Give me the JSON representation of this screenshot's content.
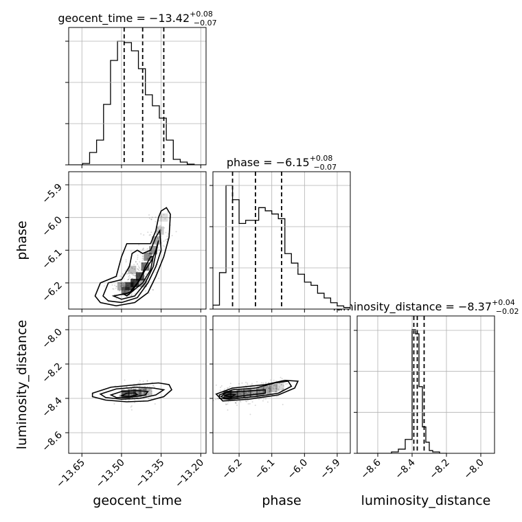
{
  "chart_data": {
    "type": "corner",
    "parameters": [
      "geocent_time",
      "phase",
      "luminosity_distance"
    ],
    "titles": [
      {
        "name": "geocent_time",
        "sep": " = ",
        "median": "−13.42",
        "plus": "+0.08",
        "minus": "−0.07"
      },
      {
        "name": "phase",
        "sep": " = ",
        "median": "−6.15",
        "plus": "+0.08",
        "minus": "−0.07"
      },
      {
        "name": "luminosity_distance",
        "sep": " = ",
        "median": "−8.37",
        "plus": "+0.04",
        "minus": "−0.02"
      }
    ],
    "axis_labels": {
      "x": [
        "geocent_time",
        "phase",
        "luminosity_distance"
      ],
      "y": [
        "phase",
        "luminosity_distance"
      ]
    },
    "ranges": {
      "geocent_time": [
        -13.7,
        -13.18
      ],
      "phase": [
        -6.28,
        -5.86
      ],
      "luminosity_distance": [
        -8.72,
        -7.92
      ]
    },
    "ticks": {
      "geocent_time": [
        "−13.65",
        "−13.50",
        "−13.35",
        "−13.20"
      ],
      "geocent_time_values": [
        -13.65,
        -13.5,
        -13.35,
        -13.2
      ],
      "phase": [
        "−6.2",
        "−6.1",
        "−6.0",
        "−5.9"
      ],
      "phase_values": [
        -6.2,
        -6.1,
        -6.0,
        -5.9
      ],
      "luminosity_distance_y": [
        "−8.0",
        "−8.2",
        "−8.4",
        "−8.6"
      ],
      "luminosity_distance_y_values": [
        -8.0,
        -8.2,
        -8.4,
        -8.6
      ],
      "luminosity_distance_x": [
        "−8.6",
        "−8.4",
        "−8.2",
        "−8.0"
      ],
      "luminosity_distance_x_values": [
        -8.6,
        -8.4,
        -8.2,
        -8.0
      ]
    },
    "quantiles": {
      "geocent_time": [
        -13.49,
        -13.42,
        -13.34
      ],
      "phase": [
        -6.22,
        -6.15,
        -6.07
      ],
      "luminosity_distance": [
        -8.39,
        -8.37,
        -8.33
      ]
    },
    "histograms": {
      "geocent_time": {
        "edges": [
          -13.7,
          -13.6736,
          -13.6472,
          -13.6208,
          -13.5944,
          -13.568,
          -13.5416,
          -13.5152,
          -13.4888,
          -13.4624,
          -13.436,
          -13.4096,
          -13.3832,
          -13.3568,
          -13.3304,
          -13.304,
          -13.2776,
          -13.2512,
          -13.2248,
          -13.1984,
          -13.172
        ],
        "counts": [
          0,
          0,
          2,
          18,
          36,
          88,
          152,
          180,
          178,
          166,
          140,
          102,
          86,
          68,
          36,
          8,
          4,
          1,
          0,
          0
        ]
      },
      "phase": {
        "edges": [
          -6.28,
          -6.26,
          -6.24,
          -6.22,
          -6.2,
          -6.18,
          -6.16,
          -6.14,
          -6.12,
          -6.1,
          -6.08,
          -6.06,
          -6.04,
          -6.02,
          -6.0,
          -5.98,
          -5.96,
          -5.94,
          -5.92,
          -5.9,
          -5.88,
          -5.86
        ],
        "counts": [
          5,
          46,
          156,
          138,
          108,
          112,
          112,
          128,
          124,
          120,
          114,
          70,
          58,
          44,
          34,
          30,
          20,
          14,
          8,
          4,
          2
        ]
      },
      "luminosity_distance": {
        "edges": [
          -8.72,
          -8.68,
          -8.64,
          -8.6,
          -8.56,
          -8.52,
          -8.48,
          -8.44,
          -8.4,
          -8.38,
          -8.36,
          -8.34,
          -8.32,
          -8.3,
          -8.28,
          -8.24,
          -8.2
        ],
        "counts": [
          0,
          0,
          0,
          0,
          0,
          2,
          6,
          20,
          178,
          172,
          96,
          38,
          16,
          4,
          2,
          0
        ]
      }
    },
    "hist2d": {
      "phase_vs_geocent_time": {
        "density": [
          {
            "x": -13.485,
            "y": -6.225,
            "w": 0.5
          },
          {
            "x": -13.47,
            "y": -6.21,
            "w": 0.7
          },
          {
            "x": -13.45,
            "y": -6.2,
            "w": 0.75
          },
          {
            "x": -13.43,
            "y": -6.18,
            "w": 0.7
          },
          {
            "x": -13.41,
            "y": -6.15,
            "w": 0.55
          },
          {
            "x": -13.4,
            "y": -6.12,
            "w": 0.45
          },
          {
            "x": -13.38,
            "y": -6.1,
            "w": 0.4
          },
          {
            "x": -13.37,
            "y": -6.07,
            "w": 0.3
          },
          {
            "x": -13.355,
            "y": -6.04,
            "w": 0.2
          },
          {
            "x": -13.34,
            "y": -6.0,
            "w": 0.12
          },
          {
            "x": -13.5,
            "y": -6.21,
            "w": 0.35
          },
          {
            "x": -13.46,
            "y": -6.16,
            "w": 0.25
          },
          {
            "x": -13.42,
            "y": -6.2,
            "w": 0.3
          }
        ],
        "contours": [
          [
            [
              -13.49,
              -6.235
            ],
            [
              -13.46,
              -6.225
            ],
            [
              -13.43,
              -6.19
            ],
            [
              -13.41,
              -6.15
            ],
            [
              -13.39,
              -6.12
            ],
            [
              -13.38,
              -6.12
            ],
            [
              -13.39,
              -6.16
            ],
            [
              -13.42,
              -6.2
            ],
            [
              -13.45,
              -6.22
            ],
            [
              -13.48,
              -6.24
            ]
          ],
          [
            [
              -13.53,
              -6.24
            ],
            [
              -13.47,
              -6.23
            ],
            [
              -13.44,
              -6.2
            ],
            [
              -13.41,
              -6.16
            ],
            [
              -13.385,
              -6.13
            ],
            [
              -13.37,
              -6.1
            ],
            [
              -13.36,
              -6.07
            ],
            [
              -13.365,
              -6.09
            ],
            [
              -13.38,
              -6.15
            ],
            [
              -13.41,
              -6.2
            ],
            [
              -13.45,
              -6.24
            ],
            [
              -13.5,
              -6.25
            ]
          ],
          [
            [
              -13.57,
              -6.24
            ],
            [
              -13.55,
              -6.2
            ],
            [
              -13.5,
              -6.19
            ],
            [
              -13.47,
              -6.15
            ],
            [
              -13.46,
              -6.11
            ],
            [
              -13.44,
              -6.1
            ],
            [
              -13.42,
              -6.11
            ],
            [
              -13.39,
              -6.1
            ],
            [
              -13.37,
              -6.06
            ],
            [
              -13.355,
              -6.04
            ],
            [
              -13.35,
              -6.1
            ],
            [
              -13.37,
              -6.15
            ],
            [
              -13.4,
              -6.2
            ],
            [
              -13.44,
              -6.245
            ],
            [
              -13.5,
              -6.26
            ],
            [
              -13.55,
              -6.255
            ]
          ],
          [
            [
              -13.6,
              -6.24
            ],
            [
              -13.58,
              -6.2
            ],
            [
              -13.52,
              -6.18
            ],
            [
              -13.5,
              -6.12
            ],
            [
              -13.48,
              -6.08
            ],
            [
              -13.44,
              -6.08
            ],
            [
              -13.42,
              -6.08
            ],
            [
              -13.39,
              -6.08
            ],
            [
              -13.37,
              -6.04
            ],
            [
              -13.36,
              -6.0
            ],
            [
              -13.35,
              -5.98
            ],
            [
              -13.33,
              -5.97
            ],
            [
              -13.315,
              -5.99
            ],
            [
              -13.32,
              -6.06
            ],
            [
              -13.34,
              -6.12
            ],
            [
              -13.37,
              -6.18
            ],
            [
              -13.4,
              -6.23
            ],
            [
              -13.45,
              -6.26
            ],
            [
              -13.52,
              -6.27
            ],
            [
              -13.58,
              -6.26
            ]
          ]
        ]
      },
      "luminosity_distance_vs_geocent_time": {
        "density": [
          {
            "x": -13.485,
            "y": -8.375,
            "w": 0.6
          },
          {
            "x": -13.46,
            "y": -8.37,
            "w": 0.5
          },
          {
            "x": -13.44,
            "y": -8.37,
            "w": 0.4
          },
          {
            "x": -13.42,
            "y": -8.365,
            "w": 0.35
          },
          {
            "x": -13.4,
            "y": -8.36,
            "w": 0.25
          }
        ],
        "contours": [
          [
            [
              -13.5,
              -8.385
            ],
            [
              -13.48,
              -8.37
            ],
            [
              -13.45,
              -8.368
            ],
            [
              -13.44,
              -8.378
            ],
            [
              -13.47,
              -8.39
            ]
          ],
          [
            [
              -13.54,
              -8.38
            ],
            [
              -13.5,
              -8.36
            ],
            [
              -13.44,
              -8.355
            ],
            [
              -13.4,
              -8.36
            ],
            [
              -13.41,
              -8.38
            ],
            [
              -13.47,
              -8.395
            ],
            [
              -13.52,
              -8.395
            ]
          ],
          [
            [
              -13.58,
              -8.375
            ],
            [
              -13.52,
              -8.345
            ],
            [
              -13.44,
              -8.335
            ],
            [
              -13.38,
              -8.34
            ],
            [
              -13.34,
              -8.35
            ],
            [
              -13.37,
              -8.38
            ],
            [
              -13.43,
              -8.4
            ],
            [
              -13.5,
              -8.405
            ],
            [
              -13.56,
              -8.395
            ]
          ],
          [
            [
              -13.61,
              -8.37
            ],
            [
              -13.54,
              -8.335
            ],
            [
              -13.44,
              -8.32
            ],
            [
              -13.36,
              -8.31
            ],
            [
              -13.32,
              -8.32
            ],
            [
              -13.31,
              -8.35
            ],
            [
              -13.34,
              -8.39
            ],
            [
              -13.4,
              -8.415
            ],
            [
              -13.48,
              -8.42
            ],
            [
              -13.56,
              -8.41
            ],
            [
              -13.61,
              -8.39
            ]
          ]
        ]
      },
      "luminosity_distance_vs_phase": {
        "density": [
          {
            "x": -6.235,
            "y": -8.38,
            "w": 0.75
          },
          {
            "x": -6.215,
            "y": -8.38,
            "w": 0.55
          },
          {
            "x": -6.195,
            "y": -8.375,
            "w": 0.45
          },
          {
            "x": -6.175,
            "y": -8.37,
            "w": 0.4
          },
          {
            "x": -6.155,
            "y": -8.37,
            "w": 0.35
          },
          {
            "x": -6.135,
            "y": -8.36,
            "w": 0.4
          },
          {
            "x": -6.115,
            "y": -8.35,
            "w": 0.35
          },
          {
            "x": -6.095,
            "y": -8.34,
            "w": 0.25
          },
          {
            "x": -6.075,
            "y": -8.33,
            "w": 0.15
          }
        ],
        "contours": [
          [
            [
              -6.245,
              -8.385
            ],
            [
              -6.23,
              -8.375
            ],
            [
              -6.21,
              -8.378
            ],
            [
              -6.225,
              -8.39
            ]
          ],
          [
            [
              -6.255,
              -8.39
            ],
            [
              -6.24,
              -8.365
            ],
            [
              -6.19,
              -8.36
            ],
            [
              -6.12,
              -8.35
            ],
            [
              -6.12,
              -8.37
            ],
            [
              -6.19,
              -8.385
            ],
            [
              -6.24,
              -8.4
            ]
          ],
          [
            [
              -6.26,
              -8.38
            ],
            [
              -6.22,
              -8.35
            ],
            [
              -6.15,
              -8.34
            ],
            [
              -6.09,
              -8.31
            ],
            [
              -6.05,
              -8.3
            ],
            [
              -6.04,
              -8.33
            ],
            [
              -6.08,
              -8.37
            ],
            [
              -6.15,
              -8.39
            ],
            [
              -6.23,
              -8.405
            ],
            [
              -6.26,
              -8.4
            ]
          ],
          [
            [
              -6.27,
              -8.375
            ],
            [
              -6.22,
              -8.34
            ],
            [
              -6.12,
              -8.32
            ],
            [
              -6.06,
              -8.295
            ],
            [
              -6.02,
              -8.3
            ],
            [
              -6.03,
              -8.34
            ],
            [
              -6.08,
              -8.38
            ],
            [
              -6.17,
              -8.405
            ],
            [
              -6.25,
              -8.415
            ]
          ]
        ]
      }
    },
    "grid": true,
    "colors": {
      "line": "#000000",
      "grid": "#b0b0b0",
      "scatter": "#000000",
      "density": "#000000"
    }
  }
}
